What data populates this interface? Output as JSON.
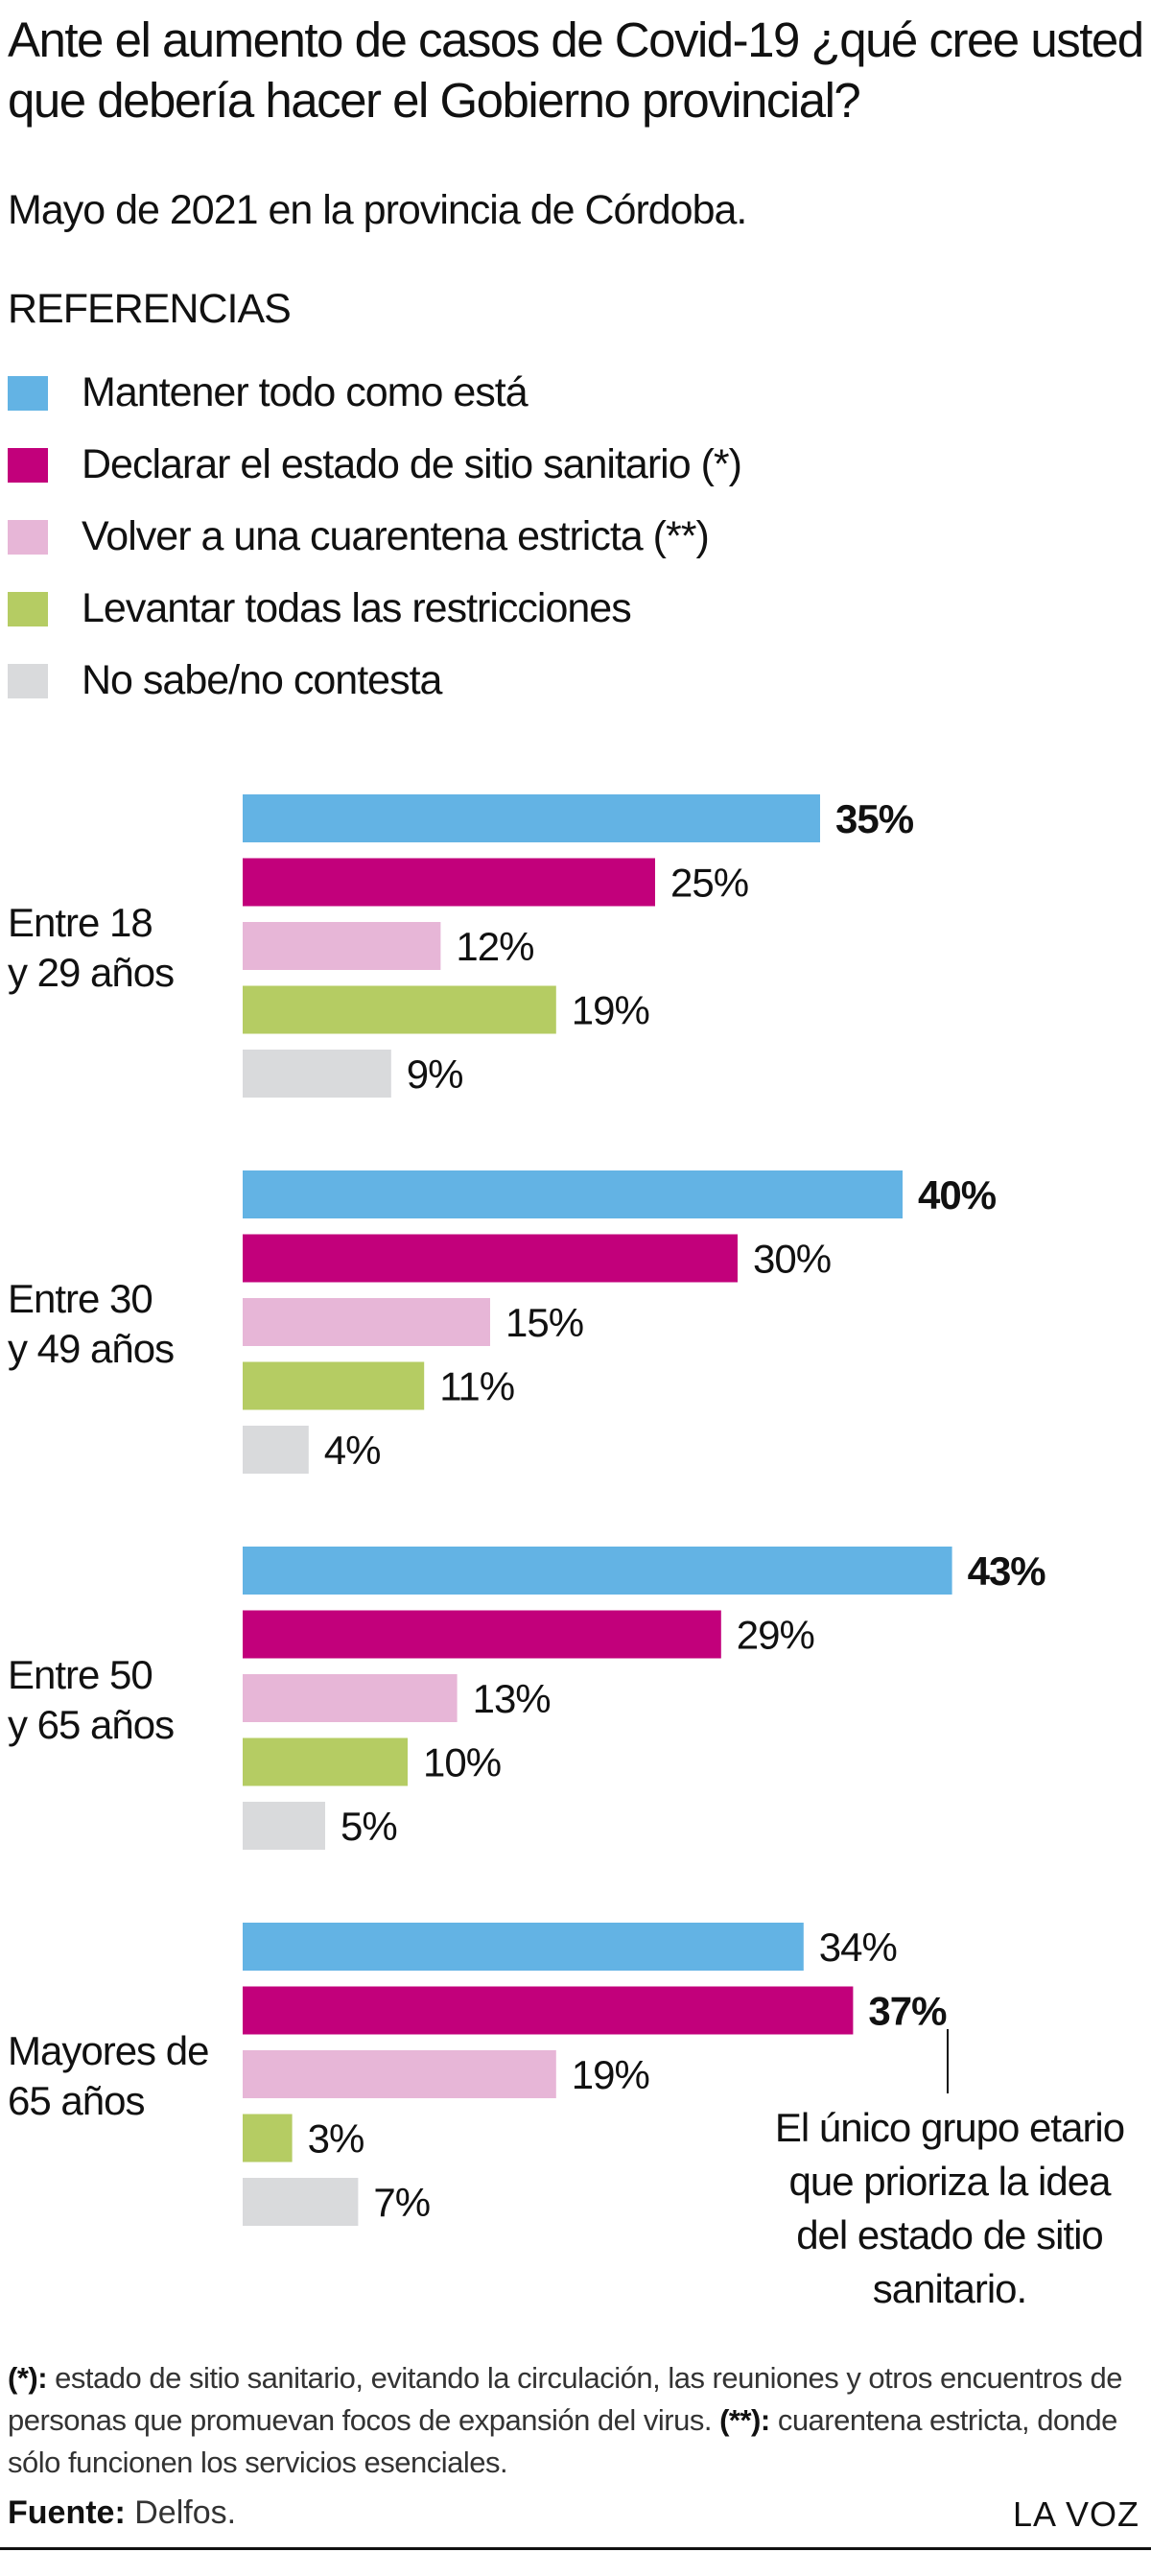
{
  "title": "Ante el aumento de casos de Covid-19 ¿qué cree usted que debería hacer el Gobierno provincial?",
  "subtitle": "Mayo de 2021 en la provincia de Córdoba.",
  "legend_title": "REFERENCIAS",
  "chart_data": {
    "type": "bar",
    "orientation": "horizontal",
    "title": "Ante el aumento de casos de Covid-19 ¿qué cree usted que debería hacer el Gobierno provincial?",
    "subtitle": "Mayo de 2021 en la provincia de Córdoba.",
    "categories": [
      "Entre 18 y 29 años",
      "Entre 30 y 49 años",
      "Entre 50 y 65 años",
      "Mayores de 65 años"
    ],
    "series": [
      {
        "name": "Mantener todo como está",
        "color": "#63b3e4",
        "values": [
          35,
          40,
          43,
          34
        ]
      },
      {
        "name": "Declarar el estado de sitio sanitario (*)",
        "color": "#c2007b",
        "values": [
          25,
          30,
          29,
          37
        ]
      },
      {
        "name": "Volver a una cuarentena estricta (**)",
        "color": "#e7b6d7",
        "values": [
          12,
          15,
          13,
          19
        ]
      },
      {
        "name": "Levantar todas las restricciones",
        "color": "#b5cc63",
        "values": [
          19,
          11,
          10,
          3
        ]
      },
      {
        "name": "No sabe/no contesta",
        "color": "#d9dadc",
        "values": [
          9,
          4,
          5,
          7
        ]
      }
    ],
    "unit": "%",
    "xlim": [
      0,
      50
    ],
    "grid": false,
    "legend_position": "top",
    "annotation": "El único grupo etario que prioriza la idea del estado de sitio sanitario."
  },
  "footnote": {
    "mark1": "(*):",
    "text1": " estado de sitio sanitario, evitando la circulación, las reuniones y otros encuentros de personas que promuevan focos de expansión del virus. ",
    "mark2": "(**):",
    "text2": " cuarentena estricta, donde sólo funcionen los servicios esenciales."
  },
  "source": {
    "label": "Fuente:",
    "value": " Delfos."
  },
  "brand": "LA VOZ"
}
